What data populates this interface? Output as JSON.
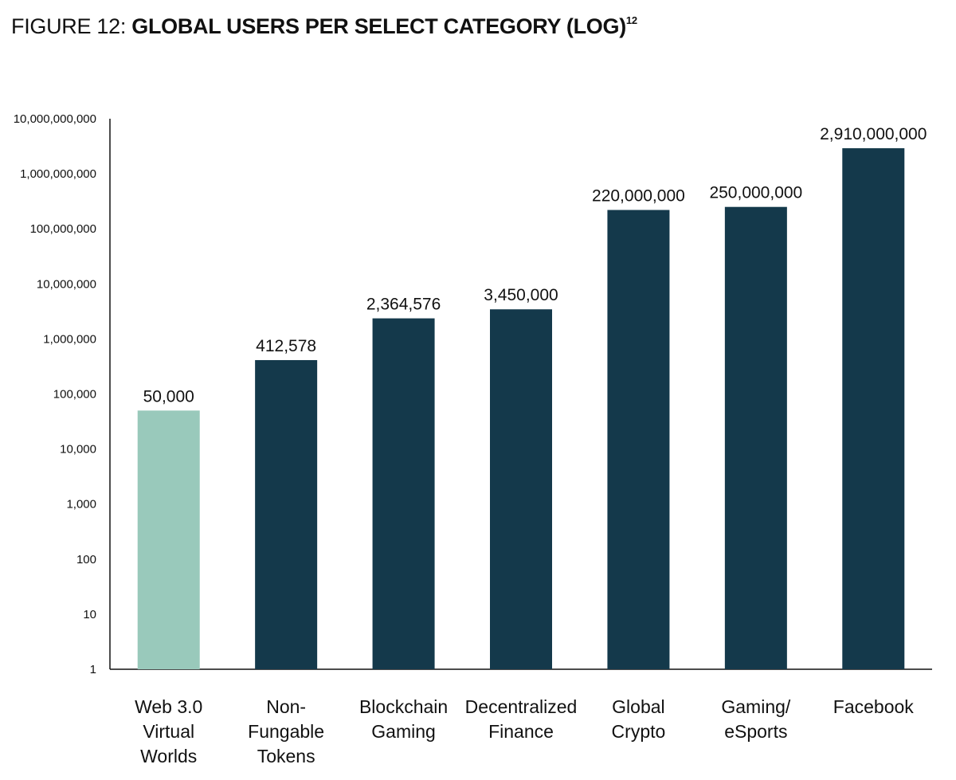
{
  "title": {
    "prefix": "FIGURE 12: ",
    "main": "GLOBAL USERS PER SELECT CATEGORY (LOG)",
    "superscript": "12"
  },
  "colors": {
    "highlight": "#99c9bb",
    "bar": "#14394b",
    "axis": "#111111"
  },
  "chart_data": {
    "type": "bar",
    "scale": "log",
    "ylim": [
      1,
      10000000000
    ],
    "yticks": [
      1,
      10,
      100,
      1000,
      10000,
      100000,
      1000000,
      10000000,
      100000000,
      1000000000,
      10000000000
    ],
    "ytick_labels": [
      "1",
      "10",
      "100",
      "1,000",
      "10,000",
      "100,000",
      "1,000,000",
      "10,000,000",
      "100,000,000",
      "1,000,000,000",
      "10,000,000,000"
    ],
    "categories": [
      [
        "Web 3.0",
        "Virtual",
        "Worlds"
      ],
      [
        "Non-",
        "Fungable",
        "Tokens"
      ],
      [
        "Blockchain",
        "Gaming"
      ],
      [
        "Decentralized",
        "Finance"
      ],
      [
        "Global",
        "Crypto"
      ],
      [
        "Gaming/",
        "eSports"
      ],
      [
        "Facebook"
      ]
    ],
    "values": [
      50000,
      412578,
      2364576,
      3450000,
      220000000,
      250000000,
      2910000000
    ],
    "value_labels": [
      "50,000",
      "412,578",
      "2,364,576",
      "3,450,000",
      "220,000,000",
      "250,000,000",
      "2,910,000,000"
    ],
    "highlight_index": 0,
    "xlabel": "",
    "ylabel": ""
  }
}
